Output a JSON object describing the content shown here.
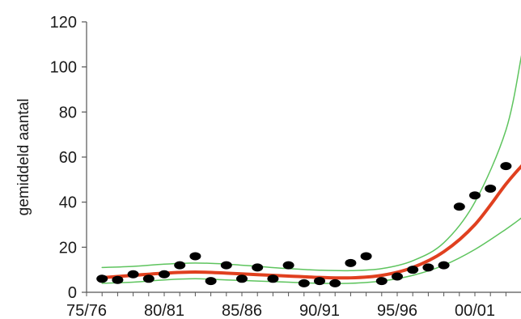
{
  "chart_data": {
    "type": "scatter",
    "title": "",
    "xlabel": "",
    "ylabel": "gemiddeld aantal",
    "x_categories": [
      "75/76",
      "80/81",
      "85/86",
      "90/91",
      "95/96",
      "00/01"
    ],
    "xlim": [
      1975,
      2004
    ],
    "ylim": [
      0,
      120
    ],
    "y_ticks": [
      0,
      20,
      40,
      60,
      80,
      100,
      120
    ],
    "grid": false,
    "legend": "none",
    "series": [
      {
        "kind": "points",
        "color": "#000000",
        "points": [
          [
            1976,
            6
          ],
          [
            1977,
            5.5
          ],
          [
            1978,
            8
          ],
          [
            1979,
            6
          ],
          [
            1980,
            8
          ],
          [
            1981,
            12
          ],
          [
            1982,
            16
          ],
          [
            1983,
            5
          ],
          [
            1984,
            12
          ],
          [
            1985,
            6
          ],
          [
            1986,
            11
          ],
          [
            1987,
            6
          ],
          [
            1988,
            12
          ],
          [
            1989,
            4
          ],
          [
            1990,
            5
          ],
          [
            1991,
            4
          ],
          [
            1992,
            13
          ],
          [
            1993,
            16
          ],
          [
            1994,
            5
          ],
          [
            1995,
            7
          ],
          [
            1996,
            10
          ],
          [
            1997,
            11
          ],
          [
            1998,
            12
          ],
          [
            1999,
            38
          ],
          [
            2000,
            43
          ],
          [
            2001,
            46
          ],
          [
            2002,
            56
          ]
        ]
      },
      {
        "kind": "trend",
        "color": "#e0401f",
        "points": [
          [
            1976,
            6.5
          ],
          [
            1978,
            7.5
          ],
          [
            1980,
            8.5
          ],
          [
            1982,
            9
          ],
          [
            1984,
            8.5
          ],
          [
            1986,
            7.8
          ],
          [
            1988,
            7.2
          ],
          [
            1990,
            6.6
          ],
          [
            1992,
            6.4
          ],
          [
            1994,
            7.5
          ],
          [
            1996,
            11
          ],
          [
            1998,
            18
          ],
          [
            2000,
            30
          ],
          [
            2002,
            48
          ],
          [
            2003,
            56
          ]
        ]
      },
      {
        "kind": "upper_band",
        "color": "#5ec45e",
        "points": [
          [
            1976,
            11
          ],
          [
            1978,
            11.5
          ],
          [
            1980,
            12.5
          ],
          [
            1982,
            13
          ],
          [
            1984,
            12.5
          ],
          [
            1986,
            11.5
          ],
          [
            1988,
            10.5
          ],
          [
            1990,
            9.8
          ],
          [
            1992,
            9.6
          ],
          [
            1994,
            10.5
          ],
          [
            1996,
            14
          ],
          [
            1998,
            22
          ],
          [
            2000,
            40
          ],
          [
            2002,
            72
          ],
          [
            2003,
            105
          ]
        ]
      },
      {
        "kind": "lower_band",
        "color": "#5ec45e",
        "points": [
          [
            1976,
            4
          ],
          [
            1978,
            4.5
          ],
          [
            1980,
            5.5
          ],
          [
            1982,
            6
          ],
          [
            1984,
            5.5
          ],
          [
            1986,
            5
          ],
          [
            1988,
            4.5
          ],
          [
            1990,
            4
          ],
          [
            1992,
            4
          ],
          [
            1994,
            5
          ],
          [
            1996,
            7.5
          ],
          [
            1998,
            12
          ],
          [
            2000,
            19
          ],
          [
            2002,
            28
          ],
          [
            2003,
            33
          ]
        ]
      }
    ]
  }
}
